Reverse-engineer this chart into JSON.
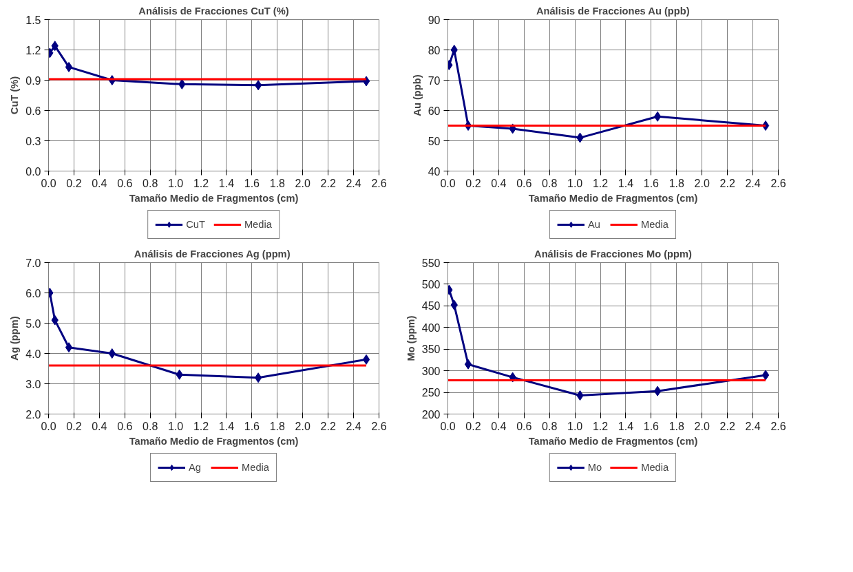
{
  "chart_data": [
    {
      "type": "line",
      "title": "Análisis de Fracciones CuT (%)",
      "xlabel": "Tamaño Medio de Fragmentos (cm)",
      "ylabel": "CuT (%)",
      "xlim": [
        0,
        2.6
      ],
      "xticks": [
        {
          "value": 0,
          "label": "0.0"
        },
        0.2,
        0.4,
        0.6,
        0.8,
        {
          "value": 1,
          "label": "1.0"
        },
        1.2,
        1.4,
        1.6,
        1.8,
        {
          "value": 2,
          "label": "2.0"
        },
        2.2,
        2.4,
        2.6
      ],
      "ylim": [
        0,
        1.5
      ],
      "yticks": [
        {
          "value": 0,
          "label": "0.0"
        },
        0.3,
        0.6,
        0.9,
        1.2,
        1.5
      ],
      "grid": true,
      "legend": "bottom",
      "marker": "diamond",
      "line_style": "solid",
      "series": [
        {
          "name": "CuT",
          "color": "#000080",
          "x": [
            0.01,
            0.05,
            0.16,
            0.5,
            1.05,
            1.65,
            2.5
          ],
          "values": [
            1.17,
            1.24,
            1.03,
            0.9,
            0.86,
            0.85,
            0.89
          ]
        },
        {
          "name": "Media",
          "color": "#ff0000",
          "marker": "none",
          "x": [
            0,
            2.5
          ],
          "values": [
            0.91,
            0.91
          ]
        }
      ]
    },
    {
      "type": "line",
      "title": "Análisis de Fracciones Au (ppb)",
      "xlabel": "Tamaño Medio de Fragmentos (cm)",
      "ylabel": "Au (ppb)",
      "xlim": [
        0,
        2.6
      ],
      "xticks": [
        {
          "value": 0,
          "label": "0.0"
        },
        0.2,
        0.4,
        0.6,
        0.8,
        {
          "value": 1,
          "label": "1.0"
        },
        1.2,
        1.4,
        1.6,
        1.8,
        {
          "value": 2,
          "label": "2.0"
        },
        2.2,
        2.4,
        2.6
      ],
      "ylim": [
        40,
        90
      ],
      "yticks": [
        40,
        50,
        60,
        70,
        80,
        90
      ],
      "grid": true,
      "legend": "bottom",
      "marker": "diamond",
      "line_style": "solid",
      "series": [
        {
          "name": "Au",
          "color": "#000080",
          "x": [
            0.01,
            0.05,
            0.16,
            0.51,
            1.04,
            1.65,
            2.5
          ],
          "values": [
            75,
            80,
            55,
            54,
            51,
            58,
            55
          ]
        },
        {
          "name": "Media",
          "color": "#ff0000",
          "marker": "none",
          "x": [
            0,
            2.5
          ],
          "values": [
            55,
            55
          ]
        }
      ]
    },
    {
      "type": "line",
      "title": "Análisis de Fracciones  Ag (ppm)",
      "xlabel": "Tamaño Medio de Fragmentos (cm)",
      "ylabel": "Ag (ppm)",
      "xlim": [
        0,
        2.6
      ],
      "xticks": [
        {
          "value": 0,
          "label": "0.0"
        },
        0.2,
        0.4,
        0.6,
        0.8,
        {
          "value": 1,
          "label": "1.0"
        },
        1.2,
        1.4,
        1.6,
        1.8,
        {
          "value": 2,
          "label": "2.0"
        },
        2.2,
        2.4,
        2.6
      ],
      "ylim": [
        2,
        7
      ],
      "yticks": [
        {
          "value": 2,
          "label": "2.0"
        },
        {
          "value": 3,
          "label": "3.0"
        },
        {
          "value": 4,
          "label": "4.0"
        },
        {
          "value": 5,
          "label": "5.0"
        },
        {
          "value": 6,
          "label": "6.0"
        },
        {
          "value": 7,
          "label": "7.0"
        }
      ],
      "grid": true,
      "legend": "bottom",
      "marker": "diamond",
      "line_style": "solid",
      "series": [
        {
          "name": "Ag",
          "color": "#000080",
          "x": [
            0.01,
            0.05,
            0.16,
            0.5,
            1.03,
            1.65,
            2.5
          ],
          "values": [
            6.0,
            5.1,
            4.2,
            4.0,
            3.3,
            3.2,
            3.8
          ]
        },
        {
          "name": "Media",
          "color": "#ff0000",
          "marker": "none",
          "x": [
            0,
            2.5
          ],
          "values": [
            3.6,
            3.6
          ]
        }
      ]
    },
    {
      "type": "line",
      "title": "Análisis de Fracciones Mo (ppm)",
      "xlabel": "Tamaño Medio de Fragmentos (cm)",
      "ylabel": "Mo (ppm)",
      "xlim": [
        0,
        2.6
      ],
      "xticks": [
        {
          "value": 0,
          "label": "0.0"
        },
        0.2,
        0.4,
        0.6,
        0.8,
        {
          "value": 1,
          "label": "1.0"
        },
        1.2,
        1.4,
        1.6,
        1.8,
        {
          "value": 2,
          "label": "2.0"
        },
        2.2,
        2.4,
        2.6
      ],
      "ylim": [
        200,
        550
      ],
      "yticks": [
        200,
        250,
        300,
        350,
        400,
        450,
        500,
        550
      ],
      "grid": true,
      "legend": "bottom",
      "marker": "diamond",
      "line_style": "solid",
      "series": [
        {
          "name": "Mo",
          "color": "#000080",
          "x": [
            0.01,
            0.05,
            0.16,
            0.51,
            1.04,
            1.65,
            2.5
          ],
          "values": [
            487,
            452,
            315,
            285,
            243,
            253,
            290
          ]
        },
        {
          "name": "Media",
          "color": "#ff0000",
          "marker": "none",
          "x": [
            0,
            2.5
          ],
          "values": [
            278,
            278
          ]
        }
      ]
    }
  ]
}
